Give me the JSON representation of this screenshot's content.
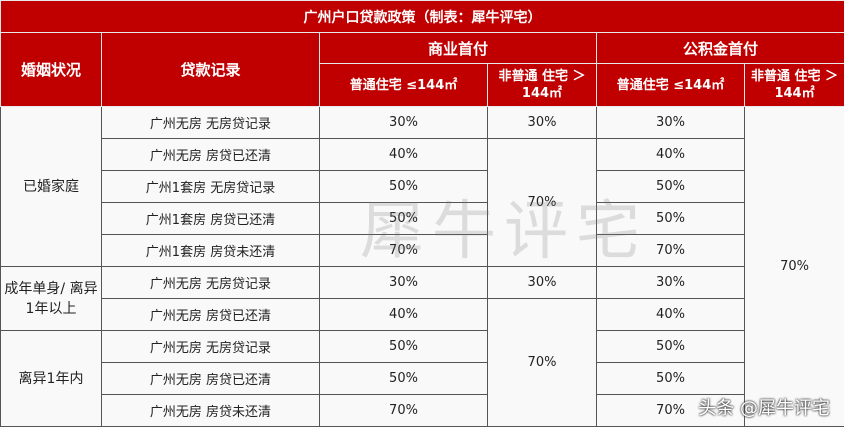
{
  "title": "广州户口贷款政策（制表：犀牛评宅）",
  "headers": {
    "marital_status": "婚姻状况",
    "loan_record": "贷款记录",
    "commercial": "商业首付",
    "provident": "公积金首付",
    "ordinary": "普通住宅 ≤144㎡",
    "non_ordinary": "非普通 住宅 ＞144㎡"
  },
  "groups": [
    {
      "status": "已婚家庭",
      "rows": [
        {
          "record": "广州无房 无房贷记录",
          "com_ord": "30%",
          "fund_ord": "30%"
        },
        {
          "record": "广州无房 房贷已还清",
          "com_ord": "40%",
          "fund_ord": "40%"
        },
        {
          "record": "广州1套房 无房贷记录",
          "com_ord": "50%",
          "fund_ord": "50%"
        },
        {
          "record": "广州1套房 房贷已还清",
          "com_ord": "50%",
          "fund_ord": "50%"
        },
        {
          "record": "广州1套房 房贷未还清",
          "com_ord": "70%",
          "fund_ord": "70%"
        }
      ],
      "com_non_first": "30%",
      "com_non_rest": "70%"
    },
    {
      "status": "成年单身/ 离异1年以上",
      "rows": [
        {
          "record": "广州无房 无房贷记录",
          "com_ord": "30%",
          "fund_ord": "30%"
        },
        {
          "record": "广州无房 房贷已还清",
          "com_ord": "40%",
          "fund_ord": "40%"
        }
      ],
      "com_non_first": "30%"
    },
    {
      "status": "离异1年内",
      "rows": [
        {
          "record": "广州无房 无房贷记录",
          "com_ord": "50%",
          "fund_ord": "50%"
        },
        {
          "record": "广州无房 房贷已还清",
          "com_ord": "50%",
          "fund_ord": "50%"
        },
        {
          "record": "广州无房 房贷未还清",
          "com_ord": "70%",
          "fund_ord": "70%"
        }
      ]
    },
    {}
  ],
  "com_non_lower": "70%",
  "fund_non_all": "70%",
  "watermark": "犀牛评宅",
  "credit": "头条 @犀牛评宅"
}
